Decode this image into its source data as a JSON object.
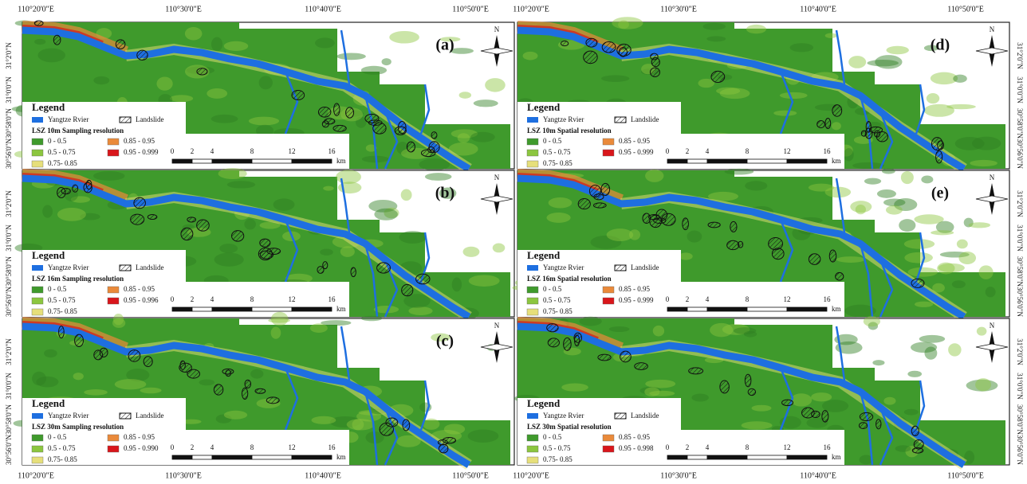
{
  "lon_labels": [
    "110°20'0\"E",
    "110°30'0\"E",
    "110°40'0\"E",
    "110°50'0\"E"
  ],
  "lat_labels": [
    "31°2'0\"N",
    "31°0'0\"N",
    "30°58'0\"N",
    "30°56'0\"N"
  ],
  "north": "N",
  "legend": {
    "title": "Legend",
    "river": "Yangtze Rvier",
    "landslide": "Landslide",
    "colors": [
      "#3f9a2c",
      "#8cc63f",
      "#e6df7a",
      "#ea8a3a",
      "#d9161b"
    ]
  },
  "scale_bar": {
    "ticks": [
      0,
      2,
      4,
      8,
      12,
      16
    ],
    "unit": "km"
  },
  "panels": [
    {
      "label": "(a)",
      "lsz": "LSZ  10m Sampling resolution",
      "classes": [
        "0 - 0.5",
        "0.5 - 0.75",
        "0.75- 0.85",
        "0.85 - 0.95",
        "0.95 - 0.999"
      ]
    },
    {
      "label": "(b)",
      "lsz": "LSZ  16m Sampling resolution",
      "classes": [
        "0 - 0.5",
        "0.5 - 0.75",
        "0.75- 0.85",
        "0.85 - 0.95",
        "0.95 - 0.996"
      ]
    },
    {
      "label": "(c)",
      "lsz": "LSZ  30m Sampling resolution",
      "classes": [
        "0 - 0.5",
        "0.5 - 0.75",
        "0.75- 0.85",
        "0.85 - 0.95",
        "0.95 - 0.990"
      ]
    },
    {
      "label": "(d)",
      "lsz": "LSZ  10m Spatial resolution",
      "classes": [
        "0 - 0.5",
        "0.5 - 0.75",
        "0.75- 0.85",
        "0.85 - 0.95",
        "0.95 - 0.999"
      ]
    },
    {
      "label": "(e)",
      "lsz": "LSZ  16m Spatial resolution",
      "classes": [
        "0 - 0.5",
        "0.5 - 0.75",
        "0.75- 0.85",
        "0.85 - 0.95",
        "0.95 - 0.999"
      ]
    },
    {
      "lsz": "LSZ  30m Spatial resolution",
      "classes": [
        "0 - 0.5",
        "0.5 - 0.75",
        "0.75- 0.85",
        "0.85 - 0.95",
        "0.95 - 0.998"
      ]
    }
  ]
}
